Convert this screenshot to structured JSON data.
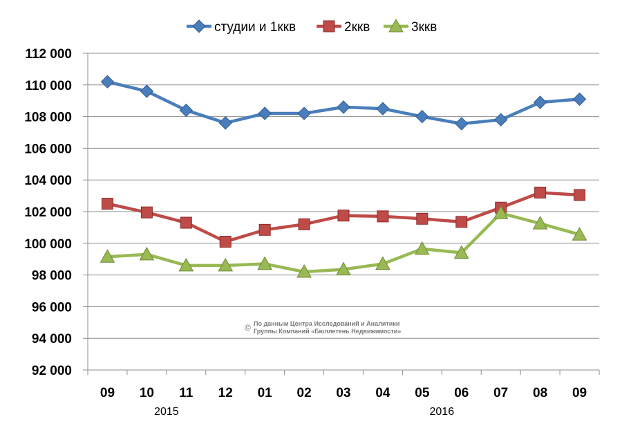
{
  "chart_data": {
    "type": "line",
    "title": "",
    "xlabel": "",
    "ylabel": "",
    "ylim": [
      92000,
      112000
    ],
    "ytick_step": 2000,
    "ytick_labels": [
      "92 000",
      "94 000",
      "96 000",
      "98 000",
      "100 000",
      "102 000",
      "104 000",
      "106 000",
      "108 000",
      "110 000",
      "112 000"
    ],
    "grid": "horizontal",
    "legend_position": "top-center",
    "categories": [
      "09",
      "10",
      "11",
      "12",
      "01",
      "02",
      "03",
      "04",
      "05",
      "06",
      "07",
      "08",
      "09"
    ],
    "year_labels": [
      {
        "label": "2015",
        "category_index": 1.5
      },
      {
        "label": "2016",
        "category_index": 8.5
      }
    ],
    "series": [
      {
        "name": "студии и 1ккв",
        "color": "#4a7ebb",
        "marker": "diamond",
        "values": [
          110200,
          109600,
          108400,
          107600,
          108200,
          108200,
          108600,
          108500,
          108000,
          107550,
          107800,
          108900,
          109100
        ]
      },
      {
        "name": "2ккв",
        "color": "#be4b48",
        "marker": "square",
        "values": [
          102500,
          101950,
          101300,
          100100,
          100850,
          101200,
          101750,
          101700,
          101550,
          101350,
          102250,
          103200,
          103050
        ]
      },
      {
        "name": "3ккв",
        "color": "#98b954",
        "marker": "triangle",
        "values": [
          99150,
          99300,
          98600,
          98600,
          98700,
          98200,
          98350,
          98700,
          99650,
          99400,
          101900,
          101250,
          100550
        ]
      }
    ],
    "annotation": {
      "symbol": "©",
      "line1": "По данным Центра Исследований и Аналитики",
      "line2": "Группы Компаний «Бюллетень Недвижимости»"
    }
  }
}
